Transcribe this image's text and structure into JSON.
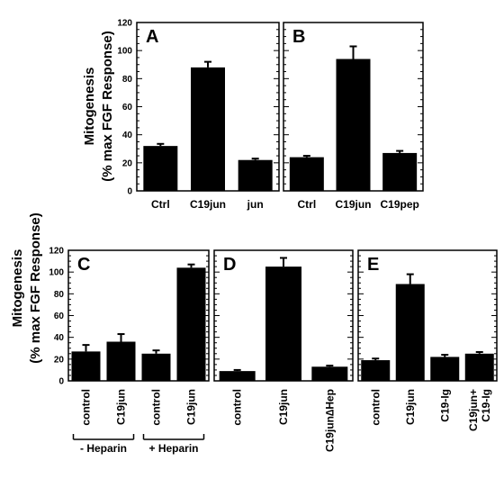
{
  "ylabel_line1": "Mitogenesis",
  "ylabel_line2": "(% max FGF Response)",
  "colors": {
    "bar": "#000000",
    "axis": "#000000",
    "background": "#ffffff"
  },
  "chart_data": [
    {
      "type": "bar",
      "panel": "A",
      "categories": [
        "Ctrl",
        "C19jun",
        "jun"
      ],
      "values": [
        32,
        88,
        22
      ],
      "errors": [
        1.5,
        4,
        1
      ],
      "ylim": [
        0,
        120
      ],
      "yticks": [
        "0",
        "20",
        "40",
        "60",
        "80",
        "100",
        "120"
      ]
    },
    {
      "type": "bar",
      "panel": "B",
      "categories": [
        "Ctrl",
        "C19jun",
        "C19pep"
      ],
      "values": [
        24,
        94,
        27
      ],
      "errors": [
        1,
        9,
        1.5
      ],
      "ylim": [
        0,
        120
      ]
    },
    {
      "type": "bar",
      "panel": "C",
      "categories": [
        "control",
        "C19jun",
        "control",
        "C19jun"
      ],
      "values": [
        27,
        36,
        25,
        104
      ],
      "errors": [
        6,
        7,
        3,
        3
      ],
      "ylim": [
        0,
        120
      ],
      "yticks": [
        "0",
        "20",
        "40",
        "60",
        "80",
        "100",
        "120"
      ],
      "groups": [
        "- Heparin",
        "+ Heparin"
      ]
    },
    {
      "type": "bar",
      "panel": "D",
      "categories": [
        "control",
        "C19jun",
        "C19jun∆Hep"
      ],
      "values": [
        9,
        105,
        13
      ],
      "errors": [
        1,
        8,
        1
      ],
      "ylim": [
        0,
        120
      ]
    },
    {
      "type": "bar",
      "panel": "E",
      "categories": [
        "control",
        "C19jun",
        "C19-Ig",
        "C19jun+\nC19-Ig"
      ],
      "values": [
        19,
        89,
        22,
        25
      ],
      "errors": [
        1.5,
        9,
        2,
        1.5
      ],
      "ylim": [
        0,
        120
      ]
    }
  ]
}
